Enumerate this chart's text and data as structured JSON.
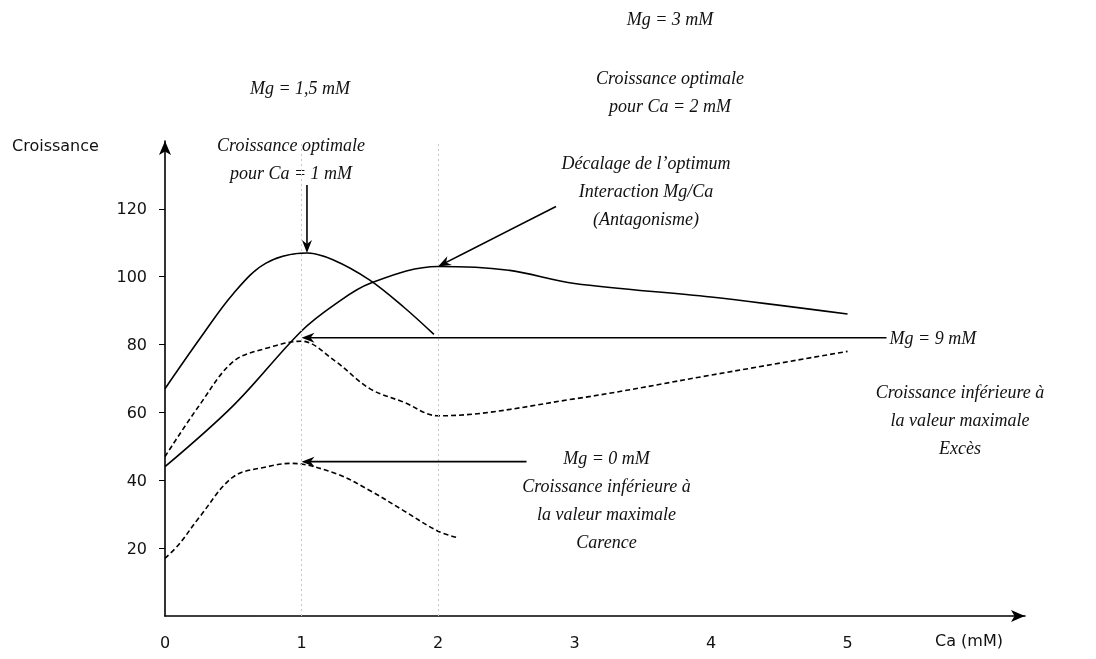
{
  "chart_data": {
    "type": "line",
    "xlabel": "Ca (mM)",
    "ylabel": "Croissance",
    "xlim": [
      0,
      6.3
    ],
    "xticks": [
      0,
      1,
      2,
      3,
      4,
      5
    ],
    "ylim": [
      0,
      140
    ],
    "yticks": [
      20,
      40,
      60,
      80,
      100,
      120
    ],
    "grid": false,
    "marker": "none",
    "series": [
      {
        "color": "#000000",
        "line_style": "solid",
        "x": [
          0,
          0.26,
          0.5,
          0.74,
          1.04,
          1.23,
          1.5,
          1.75,
          1.97
        ],
        "values": [
          67,
          82,
          95,
          104,
          107,
          105,
          99,
          91,
          83
        ]
      },
      {
        "color": "#000000",
        "line_style": "solid",
        "x": [
          0,
          0.5,
          1,
          1.25,
          1.5,
          2,
          2.5,
          3,
          4,
          5
        ],
        "values": [
          44,
          62,
          84,
          92,
          98,
          103,
          102,
          98,
          94,
          89
        ]
      },
      {
        "color": "#000000",
        "line_style": "dashed",
        "x": [
          0,
          0.25,
          0.5,
          0.75,
          1,
          1.25,
          1.5,
          1.75,
          2,
          3,
          4,
          5
        ],
        "values": [
          47,
          62,
          75,
          79,
          81,
          75,
          67,
          63,
          59,
          64,
          71,
          78
        ]
      },
      {
        "color": "#000000",
        "line_style": "dashed",
        "x": [
          0,
          0.1,
          0.25,
          0.5,
          0.75,
          0.92,
          1.25,
          1.5,
          1.75,
          2,
          2.15
        ],
        "values": [
          17,
          21,
          29,
          41,
          44,
          45,
          42,
          37,
          31,
          25,
          23
        ]
      }
    ],
    "ref_lines": [
      {
        "axis": "x",
        "value": 1,
        "color": "#c8c8c8",
        "line_style": "dotted"
      },
      {
        "axis": "x",
        "value": 2,
        "color": "#c8c8c8",
        "line_style": "dotted"
      }
    ],
    "annotations": [
      "Mg = 3 mM",
      "Mg = 1,5 mM",
      "Croissance optimale\npour Ca = 2 mM",
      {
        "text": "Croissance optimale\npour Ca = 1 mM",
        "x": 1.04,
        "y": 107
      },
      {
        "text": "Décalage de l’optimum\nInteraction Mg/Ca\n(Antagonisme)",
        "x": 2,
        "y": 103
      },
      {
        "text": "Mg = 9 mM",
        "x": 1,
        "y": 82
      },
      "Croissance inférieure à\nla valeur maximale\nExcès",
      {
        "text": "Mg = 0 mM\nCroissance inférieure à\nla valeur maximale\nCarence",
        "x": 1,
        "y": 45.5
      }
    ]
  }
}
